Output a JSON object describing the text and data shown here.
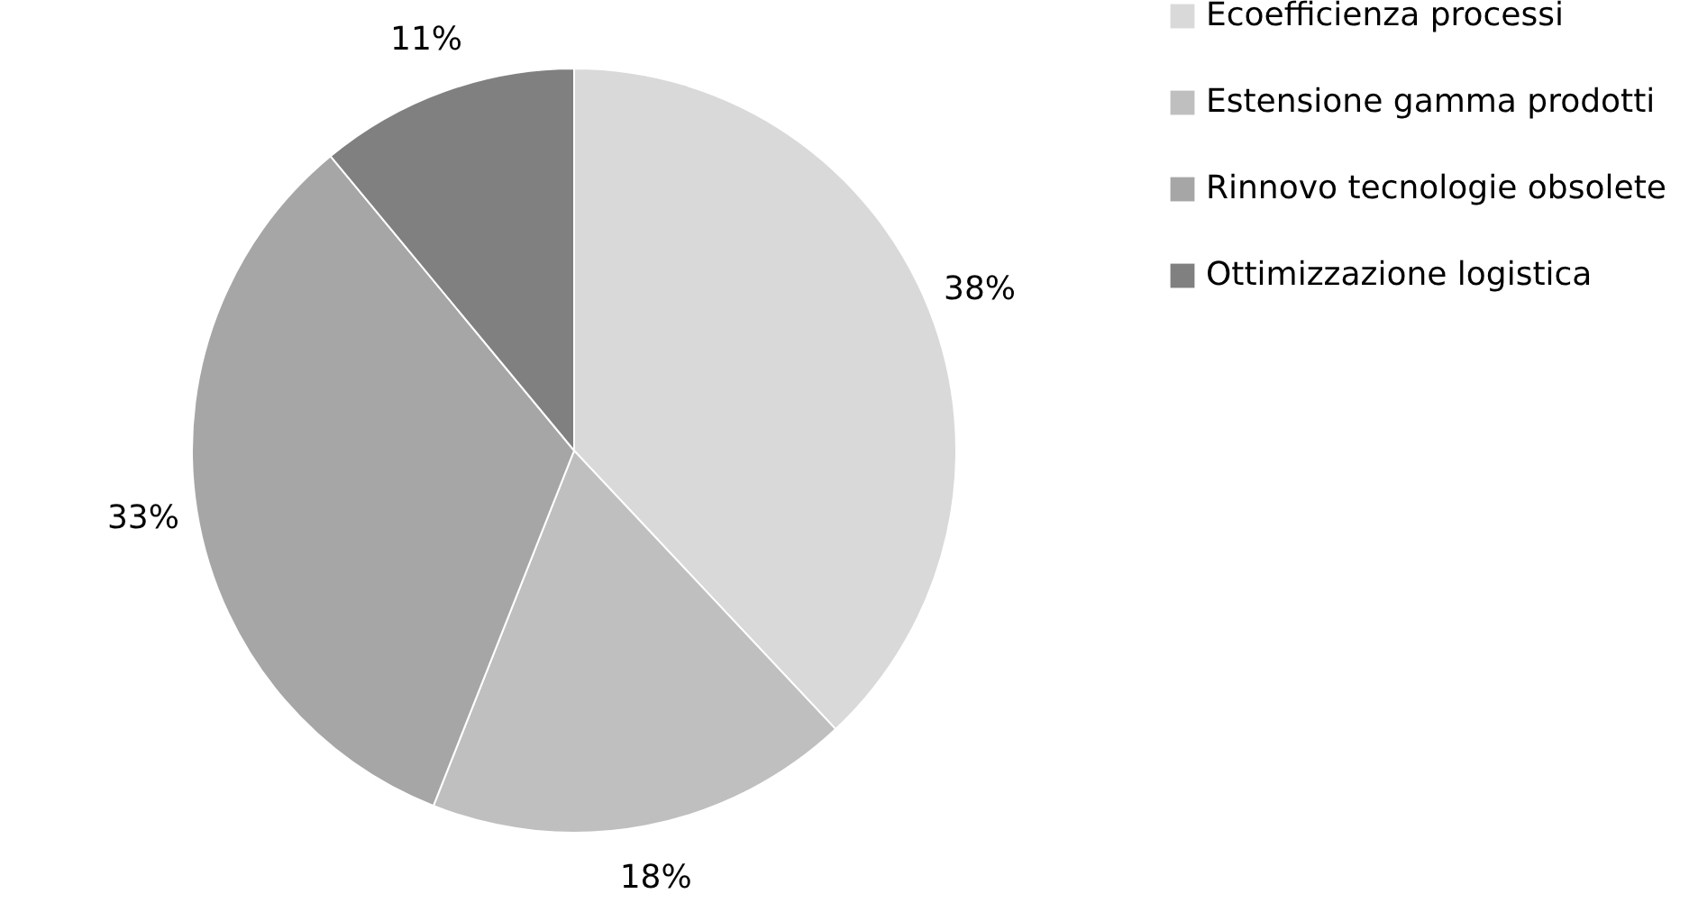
{
  "chart_data": {
    "type": "pie",
    "categories": [
      "Ecoefficienza processi",
      "Estensione gamma prodotti",
      "Rinnovo tecnologie obsolete",
      "Ottimizzazione logistica"
    ],
    "values": [
      38,
      18,
      33,
      11
    ],
    "colors": [
      "#d9d9d9",
      "#bfbfbf",
      "#a6a6a6",
      "#808080"
    ],
    "value_labels": [
      "38%",
      "18%",
      "33%",
      "11%"
    ],
    "legend": "right"
  }
}
